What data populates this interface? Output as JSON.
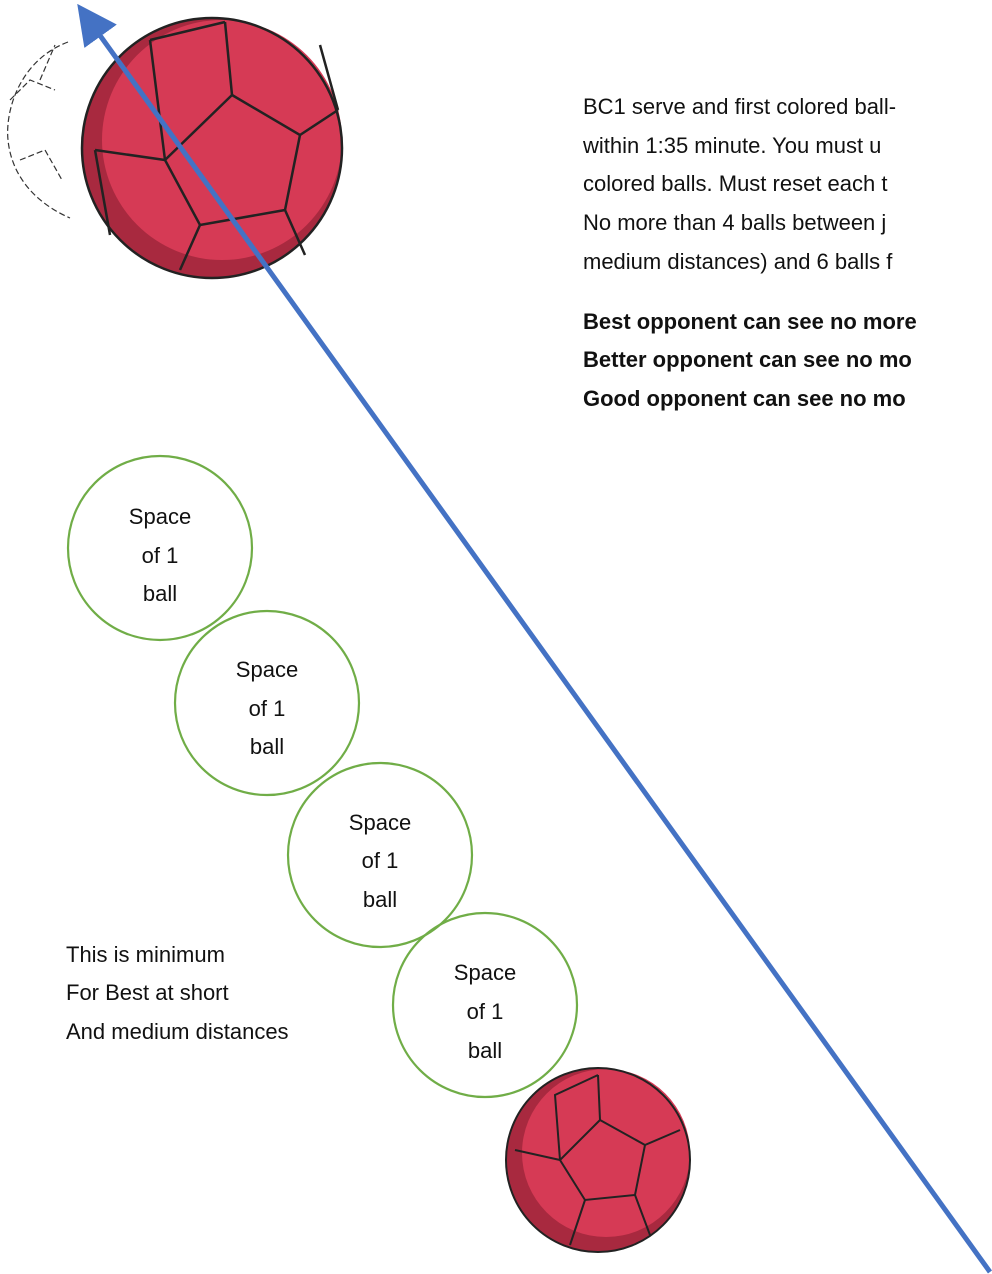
{
  "paragraph": {
    "lines": [
      "BC1 serve and first colored ball-",
      "within 1:35 minute. You must u",
      "colored balls. Must reset each t",
      "No more than 4 balls between j",
      "medium distances) and 6 balls f"
    ]
  },
  "bold_lines": [
    "Best opponent can see no more",
    "Better opponent can see no mo",
    "Good opponent can see no mo"
  ],
  "circles": [
    {
      "lines": [
        "Space",
        "of 1",
        "ball"
      ]
    },
    {
      "lines": [
        "Space",
        "of 1",
        "ball"
      ]
    },
    {
      "lines": [
        "Space",
        "of 1",
        "ball"
      ]
    },
    {
      "lines": [
        "Space",
        "of 1",
        "ball"
      ]
    }
  ],
  "note": {
    "lines": [
      "This is minimum",
      "For Best at short",
      "And medium distances"
    ]
  }
}
